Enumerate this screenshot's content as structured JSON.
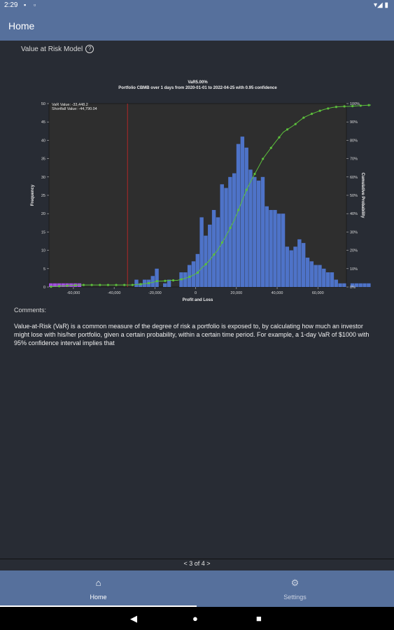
{
  "status_bar": {
    "time": "2:29",
    "icon1": "▪",
    "icon2": "▫",
    "right": "▾◢ ▮"
  },
  "app_bar": {
    "title": "Home"
  },
  "section": {
    "title": "Value at Risk Model",
    "help_icon": "?"
  },
  "chart_data": {
    "type": "bar",
    "title": "VaR5.00%",
    "subtitle": "Portfolio CBMB over 1 days from 2020-01-01 to 2022-04-25 with 0.95 confidence",
    "xlabel": "Profit and Loss",
    "ylabel": "Frequency",
    "y2label": "Cumulative Probability",
    "annotations": [
      "VaR Value: -33,448.2",
      "Shortfall Value: -44,790.04"
    ],
    "var_value": -33448.2,
    "xlim": [
      -72000,
      74000
    ],
    "ylim": [
      0,
      50
    ],
    "y2lim": [
      0,
      1
    ],
    "x_ticks": [
      -60000,
      -40000,
      -20000,
      0,
      20000,
      40000,
      60000
    ],
    "x_tick_labels": [
      "-60,000",
      "-40,000",
      "-20,000",
      "0",
      "20,000",
      "40,000",
      "60,000"
    ],
    "y_ticks": [
      0,
      5,
      10,
      15,
      20,
      25,
      30,
      35,
      40,
      45,
      50
    ],
    "y2_tick_labels": [
      "0%",
      "10%",
      "20%",
      "30%",
      "40%",
      "50%",
      "60%",
      "70%",
      "80%",
      "90%",
      "100%"
    ],
    "bin_width": 2000,
    "bin_start": -72000,
    "frequencies": [
      1,
      1,
      1,
      1,
      1,
      1,
      1,
      1,
      0,
      0,
      0,
      0,
      0,
      0,
      0,
      0,
      0,
      0,
      0,
      0,
      0,
      2,
      1,
      2,
      2,
      3,
      5,
      0,
      1,
      2,
      0,
      0,
      4,
      4,
      6,
      7,
      9,
      19,
      14,
      17,
      21,
      19,
      28,
      27,
      30,
      31,
      39,
      41,
      38,
      32,
      30,
      29,
      30,
      22,
      21,
      21,
      20,
      20,
      11,
      10,
      11,
      13,
      12,
      8,
      7,
      6,
      6,
      5,
      4,
      4,
      2,
      1,
      1,
      0,
      1,
      1,
      1,
      1,
      1,
      1,
      1,
      2,
      2
    ],
    "highlight_color": "#a24fe0",
    "bar_color": "#4e73c8",
    "cumulative_color": "#5cbf3c",
    "var_line_color": "#b02828"
  },
  "comments": {
    "label": "Comments:",
    "text": "Value-at-Risk (VaR) is a common measure of the degree of risk a portfolio is exposed to, by calculating how much an investor might lose with his/her portfolio, given a certain probability, within a certain time period. For example, a 1-day VaR of $1000 with 95% confidence interval implies that"
  },
  "pager": {
    "text": "< 3 of 4 >"
  },
  "bottom_nav": {
    "items": [
      {
        "label": "Home",
        "icon": "home-icon",
        "glyph": "⌂"
      },
      {
        "label": "Settings",
        "icon": "gear-icon",
        "glyph": "⚙"
      }
    ]
  },
  "system_nav": {
    "back": "◀",
    "home": "●",
    "recents": "■"
  }
}
